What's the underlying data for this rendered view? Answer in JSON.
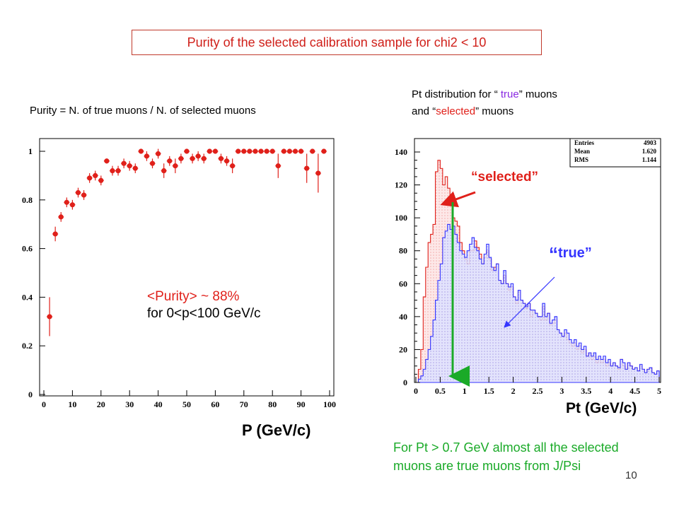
{
  "title": "Purity of the selected calibration sample for chi2 < 10",
  "purity_definition": "Purity = N. of true muons / N. of selected muons",
  "pt_description": {
    "line1_prefix": "Pt distribution for “ ",
    "line1_word": "true",
    "line1_suffix": "” muons",
    "line2_prefix": "and “",
    "line2_word": "selected",
    "line2_suffix": "” muons"
  },
  "purity_average": {
    "line1": "<Purity> ~ 88%",
    "line2": "for 0<p<100 GeV/c"
  },
  "left_xlabel": "P (GeV/c)",
  "right_xlabel": "Pt (GeV/c)",
  "annotations": {
    "selected": "selected",
    "true": "true",
    "open_quote": "“",
    "close_quote": "”"
  },
  "conclusion": "For Pt > 0.7 GeV almost all the selected  muons are true muons from J/Psi",
  "page_number": "10",
  "stats": {
    "entries_label": "Entries",
    "entries": "4903",
    "mean_label": "Mean",
    "mean": "1.620",
    "rms_label": "RMS",
    "rms": "1.144"
  },
  "colors": {
    "title_border": "#c0392b",
    "selected": "#e0201a",
    "true": "#3535ff",
    "green": "#1aaa28",
    "marker": "#e0201a"
  },
  "chart_data": [
    {
      "type": "scatter",
      "title": "",
      "xlabel": "P (GeV/c)",
      "ylabel": "",
      "xlim": [
        0,
        100
      ],
      "ylim": [
        0,
        1.05
      ],
      "xticks": [
        0,
        10,
        20,
        30,
        40,
        50,
        60,
        70,
        80,
        90,
        100
      ],
      "yticks": [
        0,
        0.2,
        0.4,
        0.6,
        0.8,
        1
      ],
      "ytick_labels": [
        "0",
        "0.2",
        "0.4",
        "0.6",
        "0.8",
        "1"
      ],
      "grid": false,
      "points": [
        {
          "x": 2,
          "y": 0.32,
          "err": 0.08
        },
        {
          "x": 4,
          "y": 0.66,
          "err": 0.03
        },
        {
          "x": 6,
          "y": 0.73,
          "err": 0.02
        },
        {
          "x": 8,
          "y": 0.79,
          "err": 0.02
        },
        {
          "x": 10,
          "y": 0.78,
          "err": 0.02
        },
        {
          "x": 12,
          "y": 0.83,
          "err": 0.02
        },
        {
          "x": 14,
          "y": 0.82,
          "err": 0.02
        },
        {
          "x": 16,
          "y": 0.89,
          "err": 0.02
        },
        {
          "x": 18,
          "y": 0.9,
          "err": 0.02
        },
        {
          "x": 20,
          "y": 0.88,
          "err": 0.02
        },
        {
          "x": 22,
          "y": 0.96,
          "err": 0.01
        },
        {
          "x": 24,
          "y": 0.92,
          "err": 0.02
        },
        {
          "x": 26,
          "y": 0.92,
          "err": 0.02
        },
        {
          "x": 28,
          "y": 0.95,
          "err": 0.02
        },
        {
          "x": 30,
          "y": 0.94,
          "err": 0.02
        },
        {
          "x": 32,
          "y": 0.93,
          "err": 0.02
        },
        {
          "x": 34,
          "y": 1.0,
          "err": 0.01
        },
        {
          "x": 36,
          "y": 0.98,
          "err": 0.02
        },
        {
          "x": 38,
          "y": 0.95,
          "err": 0.02
        },
        {
          "x": 40,
          "y": 0.99,
          "err": 0.02
        },
        {
          "x": 42,
          "y": 0.92,
          "err": 0.03
        },
        {
          "x": 44,
          "y": 0.96,
          "err": 0.02
        },
        {
          "x": 46,
          "y": 0.94,
          "err": 0.03
        },
        {
          "x": 48,
          "y": 0.97,
          "err": 0.02
        },
        {
          "x": 50,
          "y": 1.0,
          "err": 0.01
        },
        {
          "x": 52,
          "y": 0.97,
          "err": 0.02
        },
        {
          "x": 54,
          "y": 0.98,
          "err": 0.02
        },
        {
          "x": 56,
          "y": 0.97,
          "err": 0.02
        },
        {
          "x": 58,
          "y": 1.0,
          "err": 0.01
        },
        {
          "x": 60,
          "y": 1.0,
          "err": 0.01
        },
        {
          "x": 62,
          "y": 0.97,
          "err": 0.02
        },
        {
          "x": 64,
          "y": 0.96,
          "err": 0.02
        },
        {
          "x": 66,
          "y": 0.94,
          "err": 0.03
        },
        {
          "x": 68,
          "y": 1.0,
          "err": 0.0
        },
        {
          "x": 70,
          "y": 1.0,
          "err": 0.0
        },
        {
          "x": 72,
          "y": 1.0,
          "err": 0.0
        },
        {
          "x": 74,
          "y": 1.0,
          "err": 0.0
        },
        {
          "x": 76,
          "y": 1.0,
          "err": 0.0
        },
        {
          "x": 78,
          "y": 1.0,
          "err": 0.0
        },
        {
          "x": 80,
          "y": 1.0,
          "err": 0.0
        },
        {
          "x": 82,
          "y": 0.94,
          "err": 0.05
        },
        {
          "x": 84,
          "y": 1.0,
          "err": 0.0
        },
        {
          "x": 86,
          "y": 1.0,
          "err": 0.0
        },
        {
          "x": 88,
          "y": 1.0,
          "err": 0.0
        },
        {
          "x": 90,
          "y": 1.0,
          "err": 0.0
        },
        {
          "x": 92,
          "y": 0.93,
          "err": 0.06
        },
        {
          "x": 94,
          "y": 1.0,
          "err": 0.0
        },
        {
          "x": 96,
          "y": 0.91,
          "err": 0.08
        },
        {
          "x": 98,
          "y": 1.0,
          "err": 0.0
        }
      ]
    },
    {
      "type": "histogram",
      "title": "",
      "xlabel": "Pt (GeV/c)",
      "ylabel": "",
      "xlim": [
        0,
        5
      ],
      "ylim": [
        0,
        150
      ],
      "xticks": [
        0,
        0.5,
        1,
        1.5,
        2,
        2.5,
        3,
        3.5,
        4,
        4.5,
        5
      ],
      "xtick_labels": [
        "0",
        "0.5",
        "1",
        "1.5",
        "2",
        "2.5",
        "3",
        "3.5",
        "4",
        "4.5",
        "5"
      ],
      "yticks": [
        0,
        20,
        40,
        60,
        80,
        100,
        120,
        140
      ],
      "bin_width": 0.05,
      "grid": false,
      "series": [
        {
          "name": "selected",
          "color": "#e0201a",
          "values": [
            0,
            8,
            20,
            52,
            70,
            85,
            90,
            96,
            128,
            135,
            130,
            120,
            125,
            118,
            112,
            100,
            98,
            95,
            85,
            80,
            75,
            72,
            80,
            80,
            86,
            82,
            78,
            72,
            76,
            80,
            75,
            68,
            70,
            72,
            62,
            60,
            65,
            60,
            56,
            58,
            52,
            48,
            55,
            50,
            48,
            45,
            48,
            40,
            44,
            42,
            40,
            38,
            46,
            38,
            42,
            35,
            36,
            38,
            32,
            30,
            28,
            30,
            26,
            24,
            22,
            24,
            20,
            22,
            18,
            20,
            16,
            18,
            14,
            16,
            12,
            14,
            12,
            14,
            10,
            12,
            10,
            12,
            10,
            8,
            14,
            10,
            8,
            12,
            10,
            8,
            9,
            7,
            10,
            8,
            6,
            8,
            9,
            6,
            5,
            7
          ]
        },
        {
          "name": "true",
          "color": "#3535ff",
          "values": [
            0,
            2,
            4,
            8,
            14,
            20,
            28,
            38,
            50,
            62,
            72,
            88,
            92,
            96,
            93,
            95,
            90,
            85,
            80,
            78,
            76,
            80,
            84,
            88,
            82,
            80,
            75,
            72,
            78,
            84,
            76,
            70,
            68,
            72,
            62,
            60,
            68,
            60,
            58,
            60,
            52,
            50,
            56,
            50,
            48,
            46,
            48,
            44,
            44,
            42,
            40,
            40,
            48,
            40,
            42,
            36,
            38,
            40,
            32,
            30,
            28,
            32,
            30,
            26,
            24,
            26,
            22,
            24,
            20,
            22,
            16,
            18,
            16,
            18,
            14,
            16,
            14,
            16,
            12,
            14,
            10,
            12,
            10,
            9,
            14,
            12,
            8,
            12,
            10,
            8,
            9,
            7,
            11,
            8,
            6,
            8,
            9,
            6,
            5,
            7
          ]
        }
      ]
    }
  ]
}
